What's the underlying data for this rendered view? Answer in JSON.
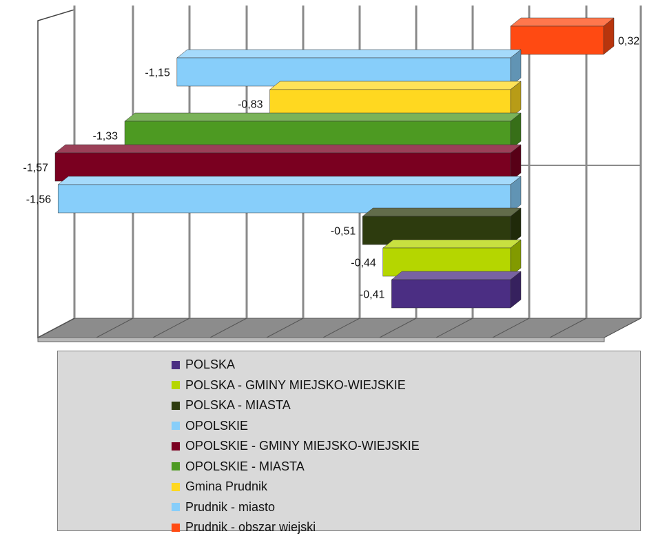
{
  "chart_data": {
    "type": "bar",
    "orientation": "horizontal",
    "style": "3d",
    "xlim": [
      -1.6,
      0.35
    ],
    "grid": true,
    "legend_position": "bottom",
    "series": [
      {
        "name": "POLSKA",
        "value": -0.41,
        "label": "-0,41",
        "color": "#4b2e83"
      },
      {
        "name": "POLSKA - GMINY MIEJSKO-WIEJSKIE",
        "value": -0.44,
        "label": "-0,44",
        "color": "#b5d600"
      },
      {
        "name": "POLSKA - MIASTA",
        "value": -0.51,
        "label": "-0,51",
        "color": "#2d3b0e"
      },
      {
        "name": "OPOLSKIE",
        "value": -1.56,
        "label": "-1,56",
        "color": "#87cefa"
      },
      {
        "name": "OPOLSKIE - GMINY MIEJSKO-WIEJSKIE",
        "value": -1.57,
        "label": "-1,57",
        "color": "#7a0020"
      },
      {
        "name": "OPOLSKIE - MIASTA",
        "value": -1.33,
        "label": "-1,33",
        "color": "#4d9a22"
      },
      {
        "name": "Gmina Prudnik",
        "value": -0.83,
        "label": "-0,83",
        "color": "#ffd820"
      },
      {
        "name": "Prudnik - miasto",
        "value": -1.15,
        "label": "-1,15",
        "color": "#87cefa"
      },
      {
        "name": "Prudnik - obszar wiejski",
        "value": 0.32,
        "label": "0,32",
        "color": "#ff4a12"
      }
    ]
  }
}
